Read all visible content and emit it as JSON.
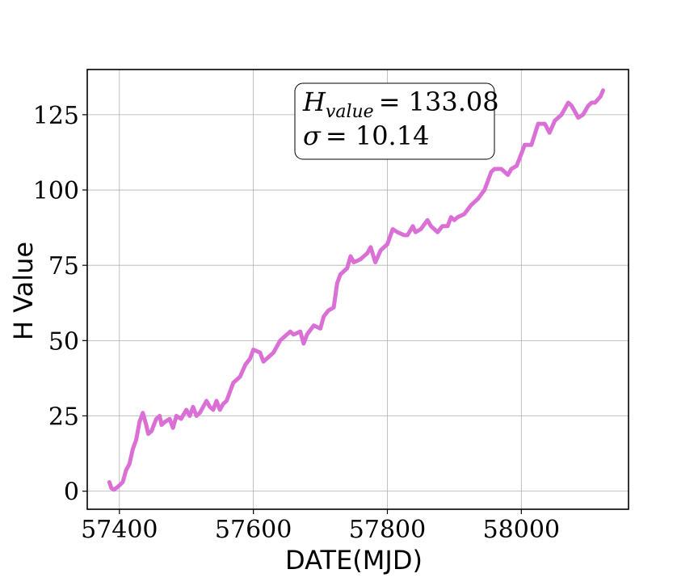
{
  "chart_data": {
    "type": "line",
    "x_label": "DATE(MJD)",
    "y_label": "H Value",
    "annotation": [
      {
        "symbol": "H",
        "subscript": "value",
        "text": "= 133.08"
      },
      {
        "symbol": "σ",
        "text": "= 10.14"
      }
    ],
    "series": [
      {
        "color": "#da70d6",
        "x": [
          57385,
          57388,
          57392,
          57398,
          57405,
          57410,
          57415,
          57420,
          57425,
          57430,
          57435,
          57440,
          57443,
          57448,
          57455,
          57460,
          57463,
          57468,
          57475,
          57480,
          57485,
          57492,
          57500,
          57505,
          57510,
          57515,
          57520,
          57525,
          57530,
          57535,
          57540,
          57545,
          57550,
          57555,
          57560,
          57565,
          57570,
          57580,
          57588,
          57595,
          57600,
          57610,
          57615,
          57620,
          57630,
          57640,
          57650,
          57655,
          57660,
          57670,
          57675,
          57680,
          57690,
          57700,
          57705,
          57712,
          57720,
          57725,
          57730,
          57740,
          57745,
          57750,
          57760,
          57770,
          57775,
          57782,
          57790,
          57800,
          57808,
          57815,
          57825,
          57830,
          57838,
          57842,
          57850,
          57860,
          57865,
          57875,
          57882,
          57890,
          57895,
          57900,
          57905,
          57915,
          57925,
          57935,
          57945,
          57950,
          57955,
          57960,
          57970,
          57980,
          57985,
          57993,
          58000,
          58005,
          58015,
          58025,
          58035,
          58042,
          58050,
          58060,
          58070,
          58075,
          58085,
          58092,
          58100,
          58105,
          58110,
          58118,
          58122
        ],
        "values": [
          3,
          1,
          0.5,
          1.5,
          3,
          7,
          9,
          14,
          17,
          23,
          26,
          22,
          19,
          20,
          24,
          25,
          22,
          23,
          24,
          21,
          25,
          24,
          27,
          25,
          28,
          25,
          26,
          28,
          30,
          28,
          27,
          30,
          27,
          29,
          30,
          33,
          36,
          38,
          42,
          44,
          47,
          46,
          43,
          44,
          46,
          50,
          52,
          53,
          52,
          53,
          49,
          52,
          55,
          54,
          58,
          60,
          61,
          69,
          72,
          74,
          78,
          76,
          77,
          79,
          81,
          76,
          80,
          82,
          87,
          86,
          85,
          85,
          88,
          86,
          87,
          90,
          88,
          86,
          88,
          88,
          91,
          90,
          91,
          92,
          95,
          97,
          100,
          103,
          106,
          107,
          107,
          105,
          107,
          108,
          112,
          115,
          115,
          122,
          122,
          119,
          123,
          125,
          129,
          128,
          124,
          125,
          128,
          129,
          129,
          131,
          133.08
        ]
      }
    ],
    "xlim": [
      57352,
      58160
    ],
    "ylim": [
      -6,
      140
    ],
    "xticks": [
      57400,
      57600,
      57800,
      58000
    ],
    "yticks": [
      0,
      25,
      50,
      75,
      100,
      125
    ],
    "grid": true
  }
}
